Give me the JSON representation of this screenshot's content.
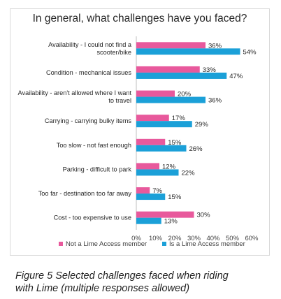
{
  "chart_data": {
    "type": "bar",
    "orientation": "horizontal",
    "title": "In general, what challenges have you faced?",
    "categories": [
      [
        "Availability - I could not find a",
        "scooter/bike"
      ],
      [
        "Condition - mechanical issues"
      ],
      [
        "Availability - aren't allowed where I want",
        "to travel"
      ],
      [
        "Carrying - carrying bulky items"
      ],
      [
        "Too slow - not fast enough"
      ],
      [
        "Parking - difficult to park"
      ],
      [
        "Too far - destination too far away"
      ],
      [
        "Cost - too expensive to use"
      ]
    ],
    "series": [
      {
        "name": "Not a Lime Access member",
        "color": "#e8599c",
        "values": [
          36,
          33,
          20,
          17,
          15,
          12,
          7,
          30
        ],
        "labels": [
          "36%",
          "33%",
          "20%",
          "17%",
          "15%",
          "12%",
          "7%",
          "30%"
        ]
      },
      {
        "name": "Is a Lime Access member",
        "color": "#1ba0d8",
        "values": [
          54,
          47,
          36,
          29,
          26,
          22,
          15,
          13
        ],
        "labels": [
          "54%",
          "47%",
          "36%",
          "29%",
          "26%",
          "22%",
          "15%",
          "13%"
        ]
      }
    ],
    "xlim": [
      0,
      60
    ],
    "xticks": [
      0,
      10,
      20,
      30,
      40,
      50,
      60
    ],
    "xtick_labels": [
      "0%",
      "10%",
      "20%",
      "30%",
      "40%",
      "50%",
      "60%"
    ],
    "xlabel": "",
    "ylabel": "",
    "grid": false,
    "legend_position": "bottom"
  },
  "caption": {
    "line1": "Figure 5 Selected challenges faced when riding",
    "line2": "with Lime (multiple responses allowed)"
  }
}
